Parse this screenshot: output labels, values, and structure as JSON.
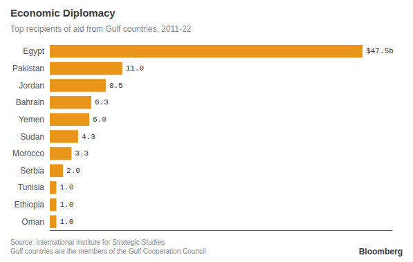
{
  "chart_data": {
    "type": "bar",
    "orientation": "horizontal",
    "title": "Economic Diplomacy",
    "subtitle": "Top recipients of aid from Gulf countries, 2011-22",
    "categories": [
      "Egypt",
      "Pakistan",
      "Jordan",
      "Bahrain",
      "Yemen",
      "Sudan",
      "Morocco",
      "Serbia",
      "Tunisia",
      "Ethiopia",
      "Oman"
    ],
    "values": [
      47.5,
      11.0,
      8.5,
      6.3,
      6.0,
      4.3,
      3.3,
      2.0,
      1.0,
      1.0,
      1.0
    ],
    "value_labels": [
      "$47.5b",
      "11.0",
      "8.5",
      "6.3",
      "6.0",
      "4.3",
      "3.3",
      "2.0",
      "1.0",
      "1.0",
      "1.0"
    ],
    "data_labels": true,
    "color": "#E8951A",
    "xlim": [
      0,
      52
    ],
    "tick_labels": "y",
    "grid": false,
    "annotations": [
      "Source: International Institute for Strategic Studies",
      "Gulf countries are the members of the Gulf Cooperation Council",
      "Bloomberg"
    ]
  }
}
